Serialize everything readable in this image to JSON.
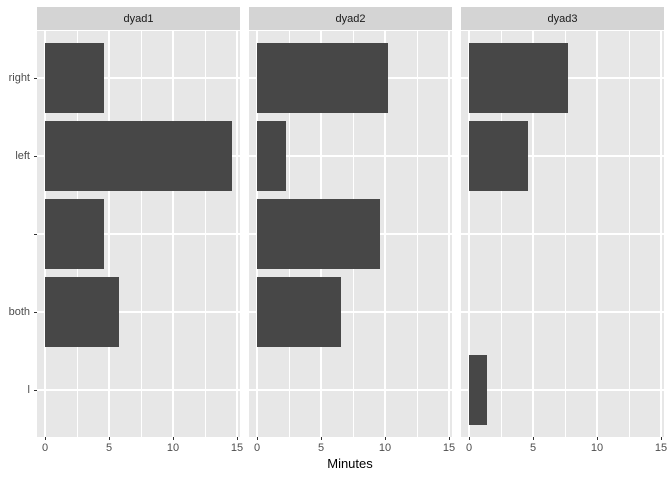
{
  "chart_data": {
    "type": "bar",
    "orientation": "horizontal",
    "title": "",
    "xlabel": "Minutes",
    "ylabel": "",
    "categories_top_to_bottom": [
      "right",
      "left",
      "",
      "both",
      "l"
    ],
    "facets": [
      {
        "label": "dyad1",
        "values": [
          4.6,
          14.6,
          4.6,
          5.8,
          0
        ]
      },
      {
        "label": "dyad2",
        "values": [
          10.2,
          2.3,
          9.6,
          6.6,
          0
        ]
      },
      {
        "label": "dyad3",
        "values": [
          7.7,
          4.6,
          0,
          0,
          1.4
        ]
      }
    ],
    "x_major_ticks": [
      0,
      5,
      10,
      15
    ],
    "x_minor_ticks": [
      2.5,
      7.5,
      12.5
    ],
    "xlim": [
      -0.65,
      15.25
    ],
    "grid": "on",
    "legend": "none",
    "colors": {
      "bar": "#474747",
      "panel_bg": "#e7e7e7",
      "strip_bg": "#d4d4d4",
      "grid": "#ffffff",
      "tick_mark": "#333333",
      "tick_text": "#4d4d4d",
      "axis_title_text": "#000000",
      "figure_bg": "#ffffff"
    }
  }
}
